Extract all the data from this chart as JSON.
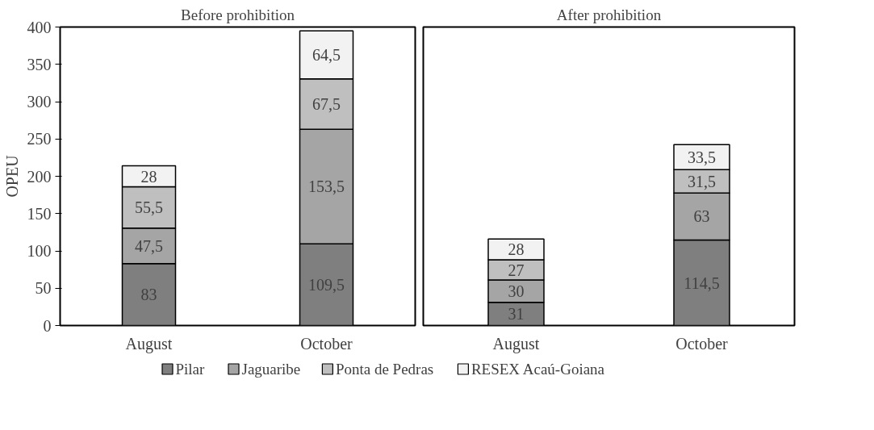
{
  "chart_data": [
    {
      "type": "bar",
      "title": "Before prohibition",
      "ylabel": "OPEU",
      "categories": [
        "August",
        "October"
      ],
      "stacked": true,
      "ylim": [
        0,
        400
      ],
      "yticks": [
        0,
        50,
        100,
        150,
        200,
        250,
        300,
        350,
        400
      ],
      "grid": false,
      "legend": "bottom",
      "series": [
        {
          "name": "Pilar",
          "color": "#7f7f7f",
          "values": [
            83,
            109.5
          ],
          "value_labels": [
            "83",
            "109,5"
          ]
        },
        {
          "name": "Jaguaribe",
          "color": "#a5a5a5",
          "values": [
            47.5,
            153.5
          ],
          "value_labels": [
            "47,5",
            "153,5"
          ]
        },
        {
          "name": "Ponta de Pedras",
          "color": "#bfbfbf",
          "values": [
            55.5,
            67.5
          ],
          "value_labels": [
            "55,5",
            "67,5"
          ]
        },
        {
          "name": "RESEX Acaú-Goiana",
          "color": "#f2f2f2",
          "values": [
            28,
            64.5
          ],
          "value_labels": [
            "28",
            "64,5"
          ]
        }
      ]
    },
    {
      "type": "bar",
      "title": "After prohibition",
      "categories": [
        "August",
        "October"
      ],
      "stacked": true,
      "ylim": [
        0,
        400
      ],
      "yticks": [
        0,
        50,
        100,
        150,
        200,
        250,
        300,
        350,
        400
      ],
      "grid": false,
      "tick_labels": "x",
      "series": [
        {
          "color": "#7f7f7f",
          "values": [
            31,
            114.5
          ],
          "value_labels": [
            "31",
            "114,5"
          ]
        },
        {
          "color": "#a5a5a5",
          "values": [
            30,
            63
          ],
          "value_labels": [
            "30",
            "63"
          ]
        },
        {
          "color": "#bfbfbf",
          "values": [
            27,
            31.5
          ],
          "value_labels": [
            "27",
            "31,5"
          ]
        },
        {
          "color": "#f2f2f2",
          "values": [
            28,
            33.5
          ],
          "value_labels": [
            "28",
            "33,5"
          ]
        }
      ]
    }
  ]
}
